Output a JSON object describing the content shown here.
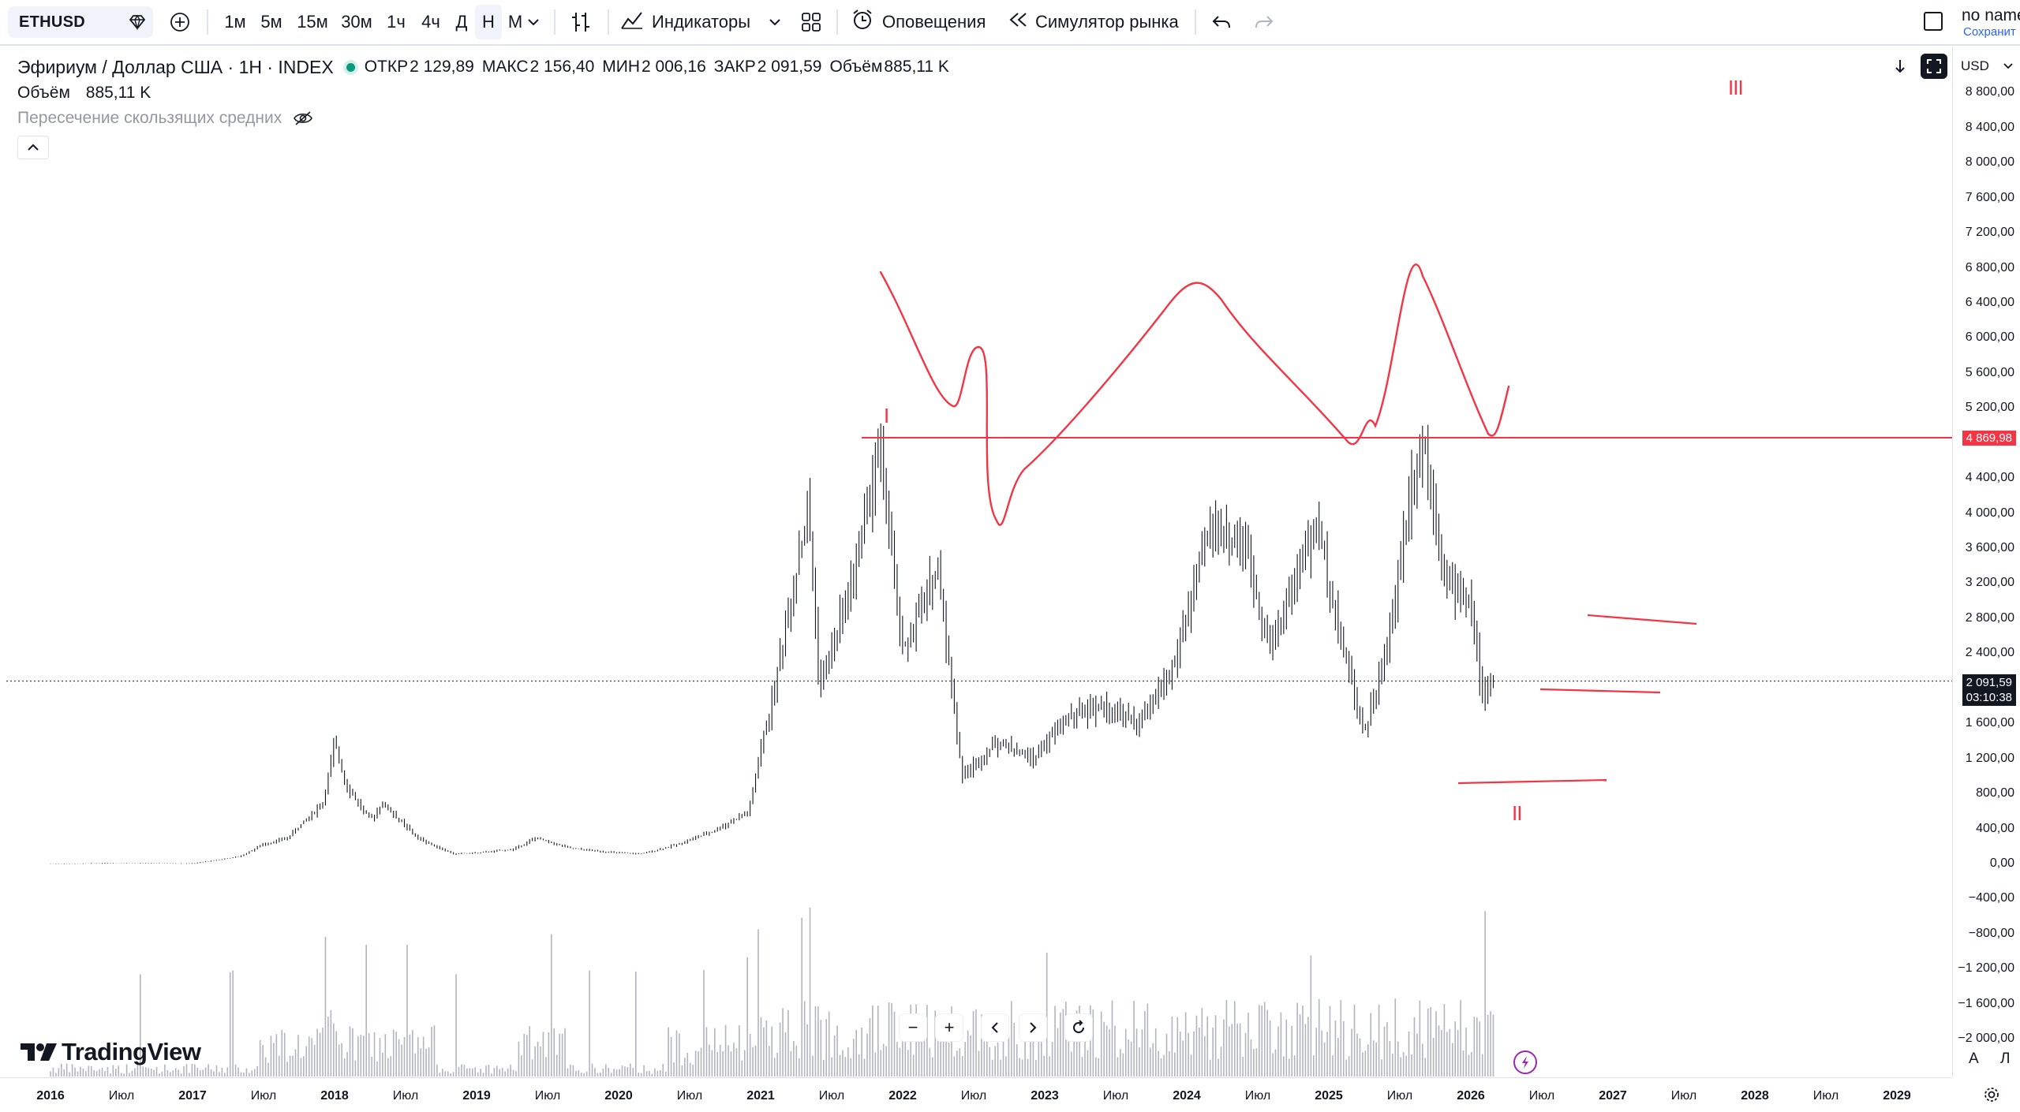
{
  "toolbar": {
    "symbol": "ETHUSD",
    "intervals": [
      "1м",
      "5м",
      "15м",
      "30м",
      "1ч",
      "4ч",
      "Д",
      "Н",
      "М"
    ],
    "active_interval": "Н",
    "indicators_label": "Индикаторы",
    "alerts_label": "Оповещения",
    "replay_label": "Симулятор рынка",
    "layout_name": "no name",
    "save_label": "Сохранит"
  },
  "legend": {
    "title": "Эфириум / Доллар США · 1Н · INDEX",
    "open_label": "ОТКР",
    "open": "2 129,89",
    "high_label": "МАКС",
    "high": "2 156,40",
    "low_label": "МИН",
    "low": "2 006,16",
    "close_label": "ЗАКР",
    "close": "2 091,59",
    "vol_label": "Объём",
    "vol": "885,11 K",
    "volume_row_label": "Объём",
    "volume_row_value": "885,11 K",
    "ma_cross_label": "Пересечение скользящих средних"
  },
  "price_axis": {
    "currency": "USD",
    "labels": [
      "8 800,00",
      "8 400,00",
      "8 000,00",
      "7 600,00",
      "7 200,00",
      "6 800,00",
      "6 400,00",
      "6 000,00",
      "5 600,00",
      "5 200,00",
      "4 400,00",
      "4 000,00",
      "3 600,00",
      "3 200,00",
      "2 800,00",
      "2 400,00",
      "1 600,00",
      "1 200,00",
      "800,00",
      "400,00",
      "0,00",
      "−400,00",
      "−800,00",
      "−1 200,00",
      "−1 600,00",
      "−2 000,00"
    ],
    "marked_level": "4 869,98",
    "current_price": "2 091,59",
    "countdown": "03:10:38",
    "auto_label": "A",
    "log_label": "Л"
  },
  "time_axis": {
    "labels": [
      "2016",
      "Июл",
      "2017",
      "Июл",
      "2018",
      "Июл",
      "2019",
      "Июл",
      "2020",
      "Июл",
      "2021",
      "Июл",
      "2022",
      "Июл",
      "2023",
      "Июл",
      "2024",
      "Июл",
      "2025",
      "Июл",
      "2026",
      "Июл",
      "2027",
      "Июл",
      "2028",
      "Июл",
      "2029"
    ]
  },
  "annotations": {
    "wave_1": "I",
    "wave_2": "II",
    "wave_3": "III"
  },
  "branding": {
    "logo_text": "TradingView"
  },
  "colors": {
    "drawing": "#f23645",
    "price_tag": "#131722",
    "volume": "#b2b5be",
    "bars": "#131722"
  },
  "chart_data": {
    "type": "ohlc-weekly",
    "symbol": "ETHUSD",
    "y_unit": "USD",
    "ylim": [
      -2000,
      8800
    ],
    "x_range": [
      "2016-01",
      "2029-03"
    ],
    "series": [
      {
        "name": "ETHUSD",
        "points": [
          [
            "2016-01",
            1
          ],
          [
            "2016-06",
            14
          ],
          [
            "2017-01",
            9
          ],
          [
            "2017-05",
            90
          ],
          [
            "2017-07",
            230
          ],
          [
            "2017-09",
            300
          ],
          [
            "2017-12",
            700
          ],
          [
            "2018-01",
            1380
          ],
          [
            "2018-02",
            900
          ],
          [
            "2018-04",
            500
          ],
          [
            "2018-05",
            700
          ],
          [
            "2018-08",
            300
          ],
          [
            "2018-11",
            120
          ],
          [
            "2019-01",
            130
          ],
          [
            "2019-04",
            170
          ],
          [
            "2019-06",
            300
          ],
          [
            "2019-09",
            180
          ],
          [
            "2020-01",
            130
          ],
          [
            "2020-03",
            120
          ],
          [
            "2020-06",
            230
          ],
          [
            "2020-09",
            380
          ],
          [
            "2020-12",
            600
          ],
          [
            "2021-01",
            1300
          ],
          [
            "2021-02",
            1900
          ],
          [
            "2021-05",
            4100
          ],
          [
            "2021-06",
            2000
          ],
          [
            "2021-09",
            3400
          ],
          [
            "2021-11",
            4800
          ],
          [
            "2022-01",
            2400
          ],
          [
            "2022-04",
            3400
          ],
          [
            "2022-06",
            1000
          ],
          [
            "2022-09",
            1400
          ],
          [
            "2022-12",
            1200
          ],
          [
            "2023-03",
            1700
          ],
          [
            "2023-06",
            1800
          ],
          [
            "2023-09",
            1600
          ],
          [
            "2023-12",
            2300
          ],
          [
            "2024-03",
            3900
          ],
          [
            "2024-06",
            3600
          ],
          [
            "2024-08",
            2500
          ],
          [
            "2024-12",
            3900
          ],
          [
            "2025-02",
            2600
          ],
          [
            "2025-04",
            1500
          ],
          [
            "2025-06",
            2500
          ],
          [
            "2025-08",
            4400
          ],
          [
            "2025-09",
            4870
          ],
          [
            "2025-11",
            3200
          ],
          [
            "2026-01",
            3000
          ],
          [
            "2026-02",
            1900
          ],
          [
            "2026-03",
            2090
          ]
        ]
      }
    ],
    "horizontal_level": 4869.98,
    "last_close": 2091.59
  }
}
